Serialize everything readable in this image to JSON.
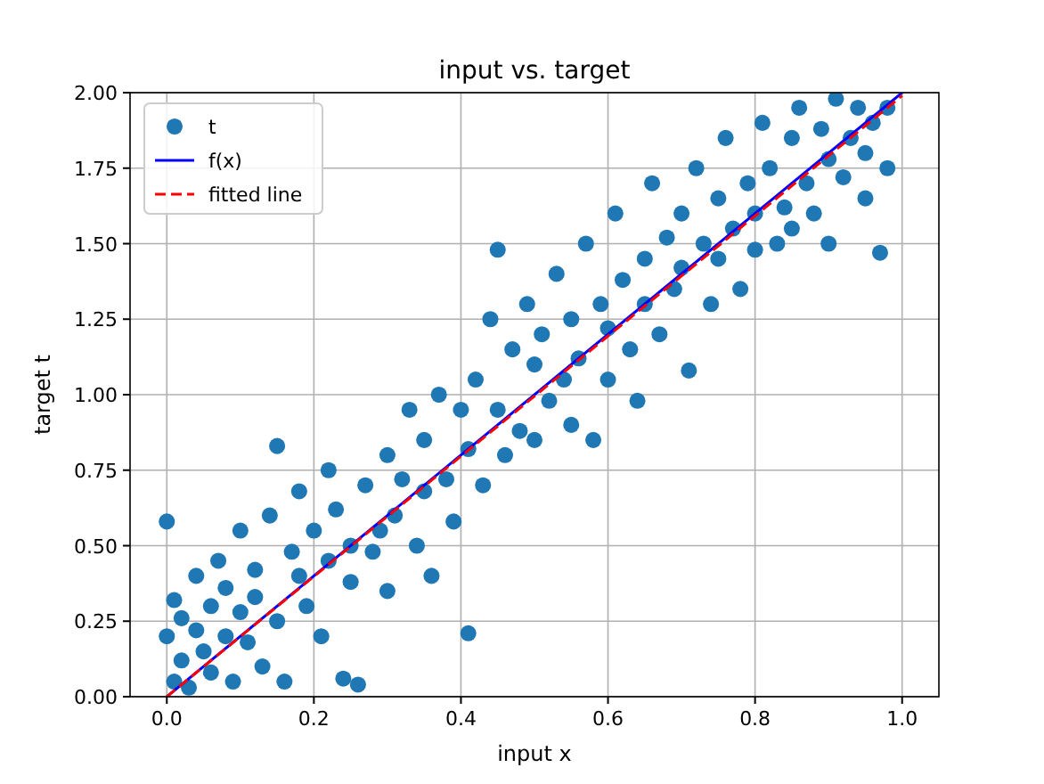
{
  "chart_data": {
    "type": "scatter",
    "title": "input vs. target",
    "xlabel": "input x",
    "ylabel": "target t",
    "xlim": [
      -0.05,
      1.05
    ],
    "xticks": [
      {
        "value": 0,
        "label": "0.0"
      },
      0.2,
      0.4,
      0.6,
      0.8,
      {
        "value": 1,
        "label": "1.0"
      }
    ],
    "ylim": [
      0,
      2
    ],
    "yticks": [
      {
        "value": 0,
        "label": "0.00"
      },
      0.25,
      {
        "value": 0.5,
        "label": "0.50"
      },
      0.75,
      {
        "value": 1,
        "label": "1.00"
      },
      1.25,
      {
        "value": 1.5,
        "label": "1.50"
      },
      1.75,
      {
        "value": 2,
        "label": "2.00"
      }
    ],
    "grid": true,
    "legend": "top left",
    "series": [
      {
        "name": "t",
        "marker": "circle",
        "color": "#1f77b4",
        "x": [
          0.0,
          0.0,
          0.01,
          0.01,
          0.02,
          0.02,
          0.03,
          0.04,
          0.04,
          0.05,
          0.06,
          0.06,
          0.07,
          0.08,
          0.08,
          0.09,
          0.1,
          0.1,
          0.11,
          0.12,
          0.12,
          0.13,
          0.14,
          0.15,
          0.15,
          0.16,
          0.17,
          0.18,
          0.18,
          0.19,
          0.2,
          0.21,
          0.22,
          0.22,
          0.23,
          0.24,
          0.25,
          0.25,
          0.26,
          0.27,
          0.28,
          0.29,
          0.3,
          0.3,
          0.31,
          0.32,
          0.33,
          0.34,
          0.35,
          0.35,
          0.36,
          0.37,
          0.38,
          0.39,
          0.4,
          0.41,
          0.41,
          0.42,
          0.43,
          0.44,
          0.45,
          0.45,
          0.46,
          0.47,
          0.48,
          0.49,
          0.5,
          0.5,
          0.51,
          0.52,
          0.53,
          0.54,
          0.55,
          0.55,
          0.56,
          0.57,
          0.58,
          0.59,
          0.6,
          0.6,
          0.61,
          0.62,
          0.63,
          0.64,
          0.65,
          0.65,
          0.66,
          0.67,
          0.68,
          0.69,
          0.7,
          0.7,
          0.71,
          0.72,
          0.73,
          0.74,
          0.75,
          0.75,
          0.76,
          0.77,
          0.78,
          0.79,
          0.8,
          0.8,
          0.81,
          0.82,
          0.83,
          0.84,
          0.85,
          0.85,
          0.86,
          0.87,
          0.88,
          0.89,
          0.9,
          0.9,
          0.91,
          0.92,
          0.93,
          0.94,
          0.95,
          0.95,
          0.96,
          0.97,
          0.98,
          0.98
        ],
        "values": [
          0.58,
          0.2,
          0.05,
          0.32,
          0.12,
          0.26,
          0.03,
          0.22,
          0.4,
          0.15,
          0.3,
          0.08,
          0.45,
          0.2,
          0.36,
          0.05,
          0.55,
          0.28,
          0.18,
          0.42,
          0.33,
          0.1,
          0.6,
          0.83,
          0.25,
          0.05,
          0.48,
          0.4,
          0.68,
          0.3,
          0.55,
          0.2,
          0.75,
          0.45,
          0.62,
          0.06,
          0.38,
          0.5,
          0.04,
          0.7,
          0.48,
          0.55,
          0.8,
          0.35,
          0.6,
          0.72,
          0.95,
          0.5,
          0.68,
          0.85,
          0.4,
          1.0,
          0.72,
          0.58,
          0.95,
          0.21,
          0.82,
          1.05,
          0.7,
          1.25,
          1.48,
          0.95,
          0.8,
          1.15,
          0.88,
          1.3,
          1.1,
          0.85,
          1.2,
          0.98,
          1.4,
          1.05,
          0.9,
          1.25,
          1.12,
          1.5,
          0.85,
          1.3,
          1.22,
          1.05,
          1.6,
          1.38,
          1.15,
          0.98,
          1.45,
          1.3,
          1.7,
          1.2,
          1.52,
          1.35,
          1.42,
          1.6,
          1.08,
          1.75,
          1.5,
          1.3,
          1.65,
          1.45,
          1.85,
          1.55,
          1.35,
          1.7,
          1.6,
          1.48,
          1.9,
          1.75,
          1.5,
          1.62,
          1.85,
          1.55,
          1.95,
          1.7,
          1.6,
          1.88,
          1.78,
          1.5,
          1.98,
          1.72,
          1.85,
          1.95,
          1.8,
          1.65,
          1.9,
          1.47,
          1.95,
          1.75
        ]
      },
      {
        "name": "f(x)",
        "type": "line",
        "color": "#0000ff",
        "line_style": "solid",
        "x": [
          0,
          1
        ],
        "values": [
          0,
          2
        ]
      },
      {
        "name": "fitted line",
        "type": "line",
        "color": "#ff0000",
        "line_style": "dashed",
        "x": [
          0,
          1
        ],
        "values": [
          0.0,
          1.99
        ]
      }
    ]
  }
}
